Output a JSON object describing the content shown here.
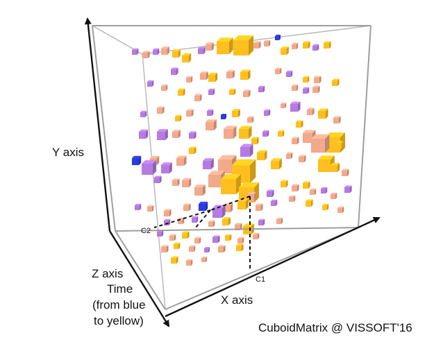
{
  "figure": {
    "title_credit": "CuboidMatrix @ VISSOFT'16",
    "y_axis_label": "Y axis",
    "x_axis_label": "X axis",
    "z_axis_label_lines": [
      "Z axis",
      "Time",
      "(from blue",
      "to yellow)"
    ],
    "cell_marker_c1": "C1",
    "cell_marker_c2": "C2"
  },
  "colors": {
    "early": "#2b3be0",
    "mid_early": "#b57be0",
    "mid_late": "#f2a98c",
    "late": "#ffbf1f",
    "box_edge": "#a9a9a9",
    "arrow": "#111111"
  }
}
